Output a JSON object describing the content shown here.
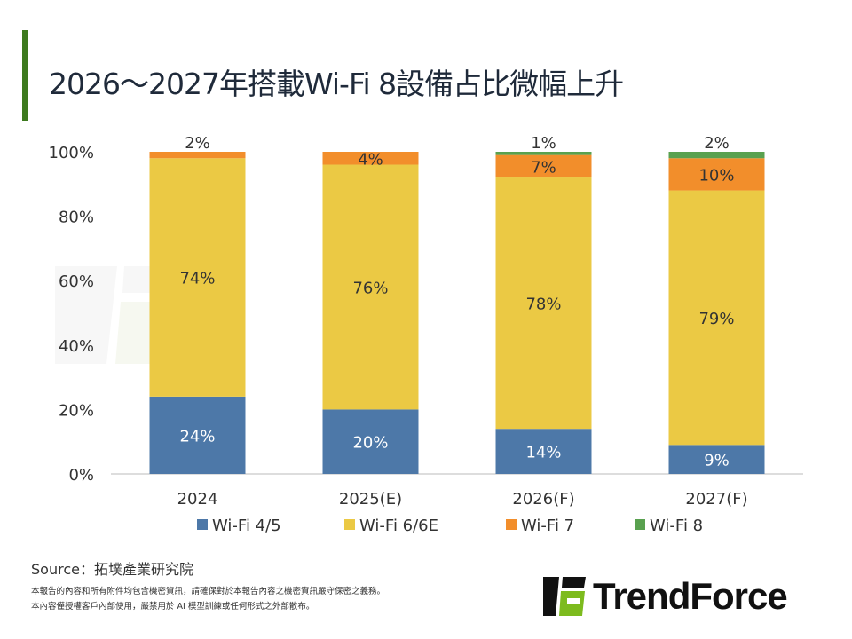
{
  "title": "2026～2027年搭載Wi-Fi 8設備占比微幅上升",
  "source": "Source：拓墣產業研究院",
  "notes": [
    "本報告的內容和所有附件均包含機密資訊，請確保對於本報告內容之機密資訊嚴守保密之義務。",
    "本內容僅授權客戶內部使用，嚴禁用於 AI 模型訓練或任何形式之外部散布。"
  ],
  "logo": "TrendForce",
  "watermark": "TrendForce",
  "chart_data": {
    "type": "bar",
    "stacked": true,
    "title": "2026～2027年搭載Wi-Fi 8設備占比微幅上升",
    "categories": [
      "2024",
      "2025(E)",
      "2026(F)",
      "2027(F)"
    ],
    "series": [
      {
        "name": "Wi-Fi 4/5",
        "color": "#4d78a8",
        "values": [
          24,
          20,
          14,
          9
        ]
      },
      {
        "name": "Wi-Fi 6/6E",
        "color": "#ebc944",
        "values": [
          74,
          76,
          78,
          79
        ]
      },
      {
        "name": "Wi-Fi 7",
        "color": "#f28e2b",
        "values": [
          2,
          4,
          7,
          10
        ]
      },
      {
        "name": "Wi-Fi 8",
        "color": "#59a14f",
        "values": [
          0,
          0,
          1,
          2
        ]
      }
    ],
    "ylim": [
      0,
      100
    ],
    "yticks": [
      "0%",
      "20%",
      "40%",
      "60%",
      "80%",
      "100%"
    ],
    "legend": "bottom"
  }
}
